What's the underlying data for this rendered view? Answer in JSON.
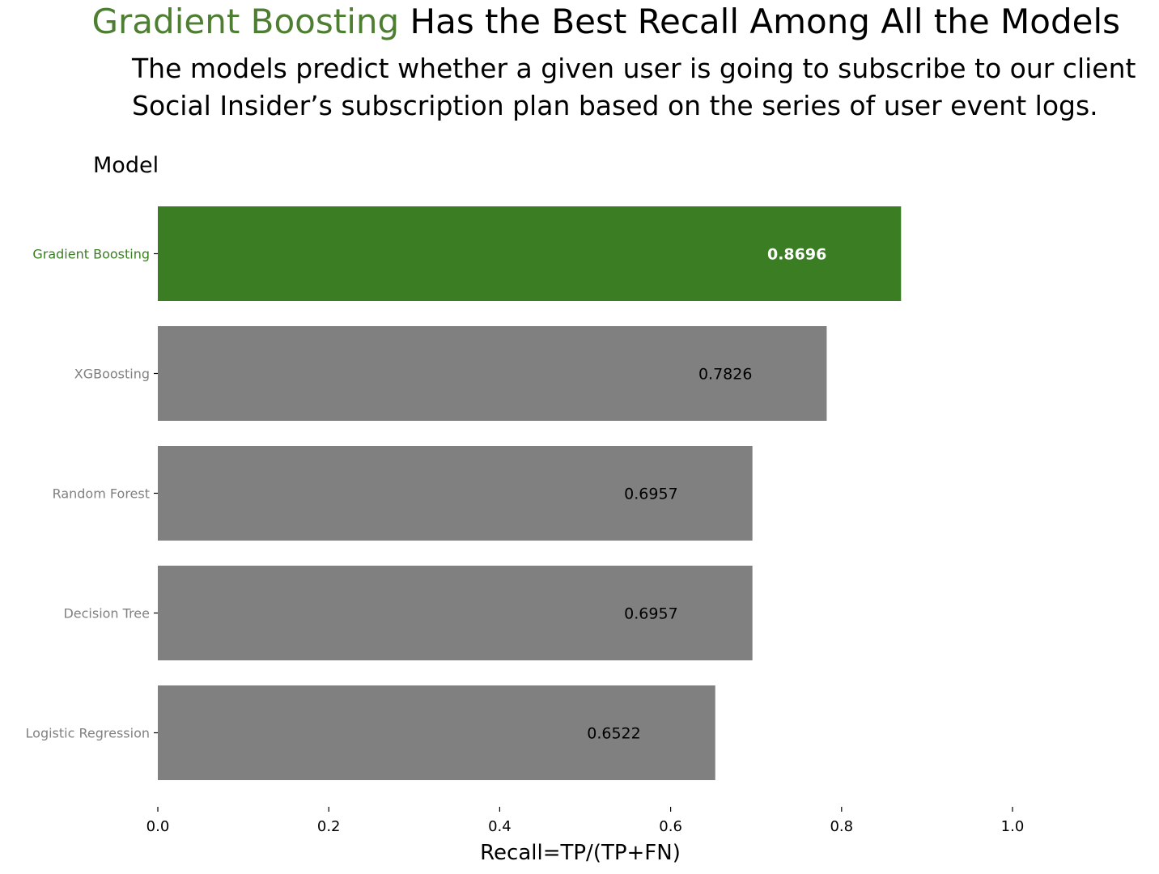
{
  "header": {
    "title_highlight": "Gradient Boosting",
    "title_rest": " Has the Best Recall Among All the Models",
    "subtitle_line1": "The models predict whether a given user is going to subscribe to our client",
    "subtitle_line2": "Social Insider’s subscription plan based on the series of user event logs."
  },
  "colors": {
    "highlight": "#3a7d23",
    "highlight_text": "#4e7e31",
    "bar": "#808080",
    "tick_label": "#808080",
    "text": "#000000"
  },
  "chart_data": {
    "type": "bar",
    "orientation": "horizontal",
    "title": "Gradient Boosting Has the Best Recall Among All the Models",
    "ylabel": "Model",
    "xlabel": "Recall=TP/(TP+FN)",
    "categories": [
      "Gradient Boosting",
      "XGBoosting",
      "Random Forest",
      "Decision Tree",
      "Logistic Regression"
    ],
    "values": [
      0.8696,
      0.7826,
      0.6957,
      0.6957,
      0.6522
    ],
    "value_labels": [
      "0.8696",
      "0.7826",
      "0.6957",
      "0.6957",
      "0.6522"
    ],
    "highlight_category": "Gradient Boosting",
    "xlim": [
      0.0,
      1.0
    ],
    "xticks": [
      0.0,
      0.2,
      0.4,
      0.6,
      0.8,
      1.0
    ],
    "xtick_labels": [
      "0.0",
      "0.2",
      "0.4",
      "0.6",
      "0.8",
      "1.0"
    ],
    "grid": false,
    "legend": false
  }
}
